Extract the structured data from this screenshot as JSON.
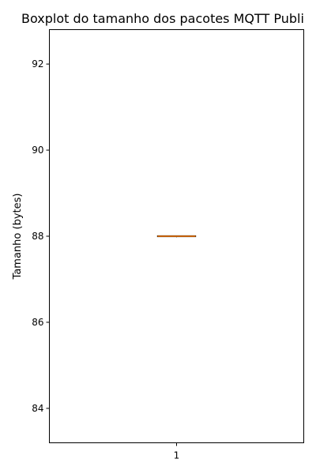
{
  "chart_data": {
    "type": "boxplot",
    "title": "Boxplot do tamanho dos pacotes MQTT Publi",
    "xlabel": "",
    "ylabel": "Tamanho (bytes)",
    "categories": [
      "1"
    ],
    "boxes": [
      {
        "category": "1",
        "min": 88,
        "q1": 88,
        "median": 88,
        "q3": 88,
        "max": 88
      }
    ],
    "ylim": [
      83.2,
      92.8
    ],
    "yticks": [
      84,
      86,
      88,
      90,
      92
    ],
    "grid": false,
    "colors": {
      "box": "#000000",
      "median": "#ff7f0e",
      "axes": "#000000"
    }
  }
}
